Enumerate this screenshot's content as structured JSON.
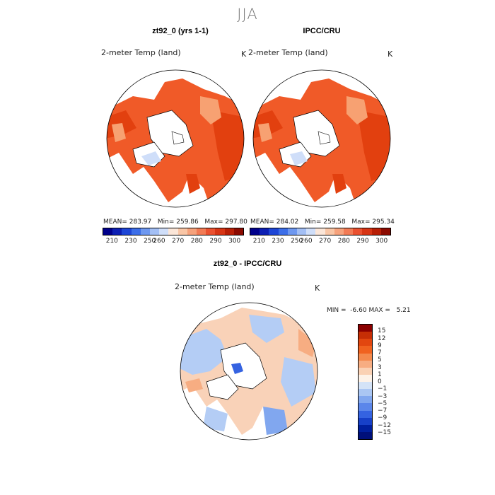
{
  "season": "JJA",
  "panels": [
    {
      "title": "zt92_0 (yrs 1-1)",
      "variable": "2-meter Temp (land)",
      "units": "K",
      "mean_label": "MEAN=",
      "mean": "283.97",
      "min_label": "Min=",
      "min": "259.86",
      "max_label": "Max=",
      "max": "297.80"
    },
    {
      "title": "IPCC/CRU",
      "variable": "2-meter Temp (land)",
      "units": "K",
      "mean_label": "MEAN=",
      "mean": "284.02",
      "min_label": "Min=",
      "min": "259.58",
      "max_label": "Max=",
      "max": "295.34"
    }
  ],
  "colorbar": {
    "ticks": [
      "210",
      "230",
      "250",
      "260",
      "270",
      "280",
      "290",
      "300"
    ],
    "colors": [
      "#00008b",
      "#0d1fb3",
      "#1e46d6",
      "#3c6ee8",
      "#6e98f0",
      "#a3bff5",
      "#cfdef9",
      "#fbe6d8",
      "#f9c6a6",
      "#f6a27c",
      "#f27b55",
      "#ea5130",
      "#d73515",
      "#b81f06",
      "#8b0a00"
    ]
  },
  "difference": {
    "title": "zt92_0 - IPCC/CRU",
    "variable": "2-meter Temp (land)",
    "units": "K",
    "min_label": "MIN =",
    "min": "-6.60",
    "max_label": "MAX =",
    "max": "5.21",
    "colorbar_ticks": [
      "15",
      "12",
      "9",
      "7",
      "5",
      "3",
      "1",
      "0",
      "−1",
      "−3",
      "−5",
      "−7",
      "−9",
      "−12",
      "−15"
    ],
    "colorbar_colors": [
      "#8b0000",
      "#c62e05",
      "#e2460f",
      "#f0621f",
      "#f48a4d",
      "#f7ad82",
      "#fad1b4",
      "#fdf2e8",
      "#d4e3f7",
      "#aac6f3",
      "#81a7ef",
      "#5b86ea",
      "#3563e1",
      "#1740c8",
      "#001f9e",
      "#00107a"
    ]
  },
  "colors": {
    "land_warm": "#f05a28",
    "land_hot": "#e2400f",
    "land_mild": "#f7a172",
    "ice": "#ffffff",
    "diff_cool": "#b4cdf5",
    "diff_warm": "#f9d2b8"
  }
}
